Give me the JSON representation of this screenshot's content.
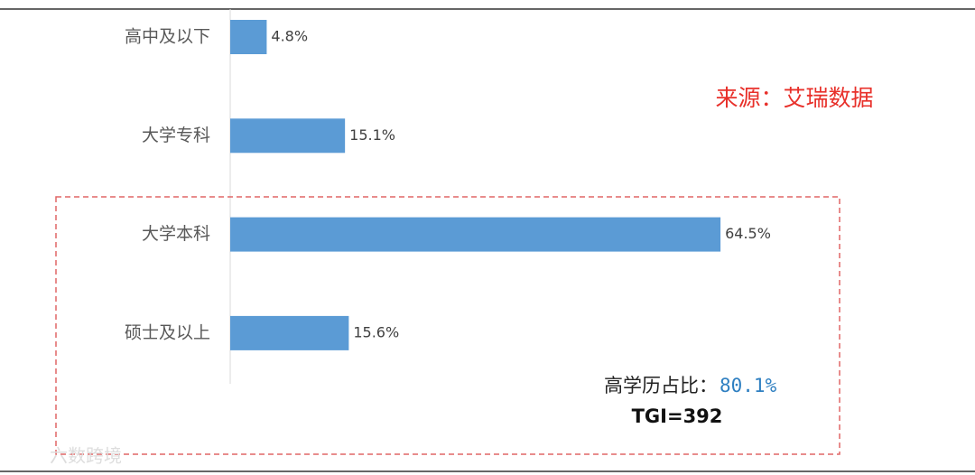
{
  "chart_data": {
    "type": "bar",
    "orientation": "horizontal",
    "categories": [
      "高中及以下",
      "大学专科",
      "大学本科",
      "硕士及以上"
    ],
    "values": [
      4.8,
      15.1,
      64.5,
      15.6
    ],
    "value_labels": [
      "4.8%",
      "15.1%",
      "64.5%",
      "15.6%"
    ],
    "color": "#5b9bd5"
  },
  "annotations": {
    "source": "来源：艾瑞数据",
    "highlight_label": "高学历占比：",
    "highlight_value": "80.1%",
    "tgi": "TGI=392",
    "watermark": "六数跨境"
  }
}
